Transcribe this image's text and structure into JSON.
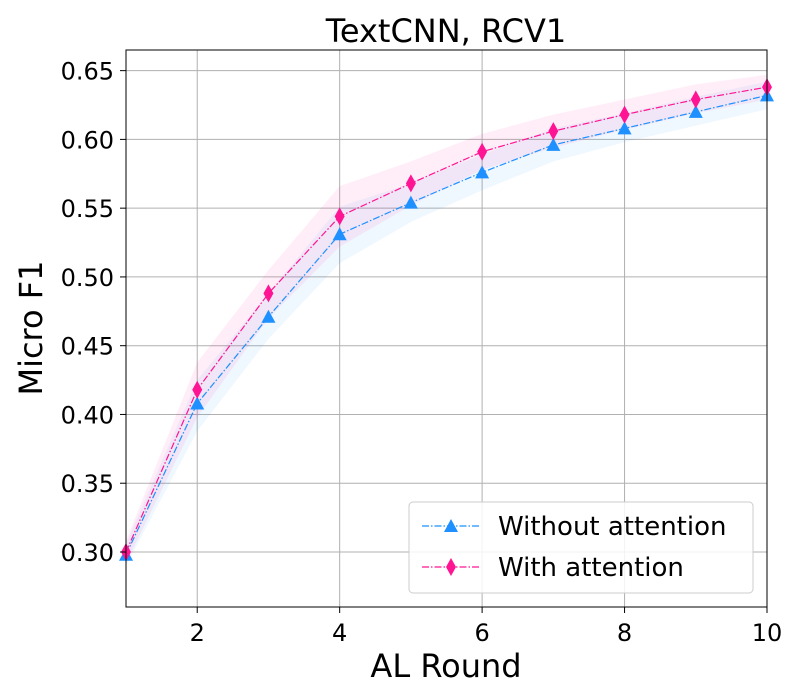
{
  "chart_data": {
    "type": "line",
    "title": "TextCNN, RCV1",
    "xlabel": "AL Round",
    "ylabel": "Micro F1",
    "xlim": [
      1,
      10
    ],
    "ylim": [
      0.26,
      0.665
    ],
    "xticks": [
      2,
      4,
      6,
      8,
      10
    ],
    "xtick_labels": [
      "2",
      "4",
      "6",
      "8",
      "10"
    ],
    "yticks": [
      0.3,
      0.35,
      0.4,
      0.45,
      0.5,
      0.55,
      0.6,
      0.65
    ],
    "ytick_labels": [
      "0.30",
      "0.35",
      "0.40",
      "0.45",
      "0.50",
      "0.55",
      "0.60",
      "0.65"
    ],
    "grid": true,
    "legend_position": "bottom-right",
    "x": [
      1,
      2,
      3,
      4,
      5,
      6,
      7,
      8,
      9,
      10
    ],
    "series": [
      {
        "name": "Without attention",
        "color": "#1e90ff",
        "marker": "triangle",
        "values": [
          0.298,
          0.408,
          0.471,
          0.531,
          0.554,
          0.576,
          0.596,
          0.608,
          0.62,
          0.632
        ],
        "lower": [
          0.29,
          0.388,
          0.455,
          0.51,
          0.54,
          0.563,
          0.584,
          0.598,
          0.61,
          0.622
        ],
        "upper": [
          0.306,
          0.425,
          0.488,
          0.551,
          0.568,
          0.589,
          0.608,
          0.619,
          0.631,
          0.642
        ]
      },
      {
        "name": "With attention",
        "color": "#ff1493",
        "marker": "diamond",
        "values": [
          0.3,
          0.418,
          0.488,
          0.544,
          0.568,
          0.591,
          0.606,
          0.618,
          0.629,
          0.638
        ],
        "lower": [
          0.292,
          0.398,
          0.47,
          0.522,
          0.552,
          0.578,
          0.594,
          0.607,
          0.619,
          0.629
        ],
        "upper": [
          0.308,
          0.438,
          0.505,
          0.566,
          0.584,
          0.604,
          0.618,
          0.629,
          0.64,
          0.647
        ]
      }
    ]
  }
}
